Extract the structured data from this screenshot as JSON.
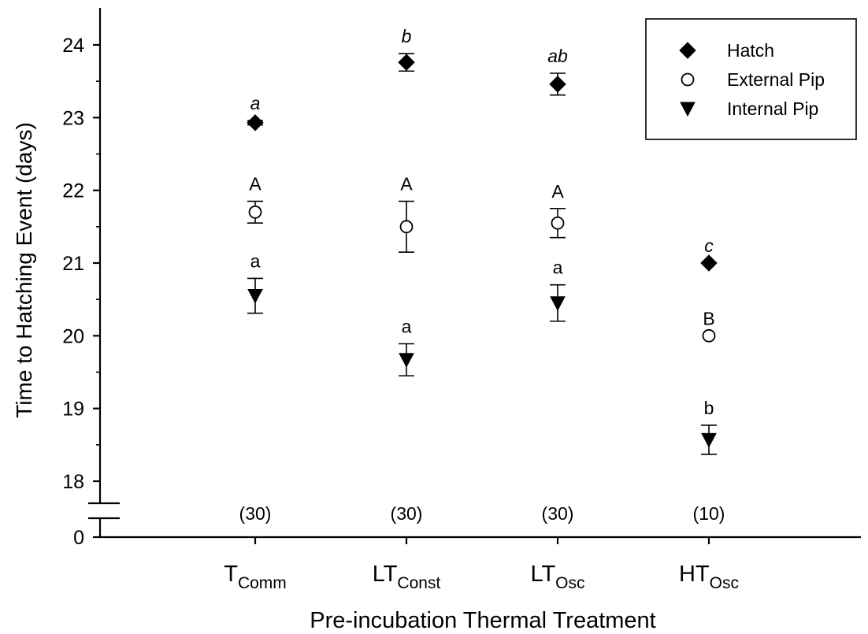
{
  "chart_data": {
    "type": "scatter",
    "xlabel": "Pre-incubation Thermal Treatment",
    "ylabel": "Time to Hatching Event (days)",
    "ylim": [
      18,
      24.5
    ],
    "y_axis_break": {
      "below": 18,
      "lower_tick": 0
    },
    "yticks": [
      18,
      19,
      20,
      21,
      22,
      23,
      24
    ],
    "ytick_zero_label": "0",
    "grid": false,
    "legend_position": "top-right",
    "categories": [
      {
        "base": "T",
        "sub": "Comm"
      },
      {
        "base": "LT",
        "sub": "Const"
      },
      {
        "base": "LT",
        "sub": "Osc"
      },
      {
        "base": "HT",
        "sub": "Osc"
      }
    ],
    "sample_sizes": [
      "(30)",
      "(30)",
      "(30)",
      "(10)"
    ],
    "series": [
      {
        "name": "Hatch",
        "marker": "diamond",
        "fill": "#000000",
        "values": [
          22.93,
          23.76,
          23.46,
          21.0
        ],
        "err_low": [
          0.03,
          0.12,
          0.15,
          0
        ],
        "err_high": [
          0.03,
          0.12,
          0.15,
          0
        ],
        "letters": [
          "a",
          "b",
          "ab",
          "c"
        ],
        "letter_style": "italic"
      },
      {
        "name": "External Pip",
        "marker": "circle-open",
        "fill": "#ffffff",
        "values": [
          21.7,
          21.5,
          21.55,
          20.0
        ],
        "err_low": [
          0.15,
          0.35,
          0.2,
          0
        ],
        "err_high": [
          0.15,
          0.35,
          0.2,
          0
        ],
        "letters": [
          "A",
          "A",
          "A",
          "B"
        ],
        "letter_style": "normal"
      },
      {
        "name": "Internal Pip",
        "marker": "triangle-down",
        "fill": "#000000",
        "values": [
          20.55,
          19.67,
          20.45,
          18.57
        ],
        "err_low": [
          0.24,
          0.22,
          0.25,
          0.2
        ],
        "err_high": [
          0.24,
          0.22,
          0.25,
          0.2
        ],
        "letters": [
          "a",
          "a",
          "a",
          "b"
        ],
        "letter_style": "normal"
      }
    ]
  }
}
